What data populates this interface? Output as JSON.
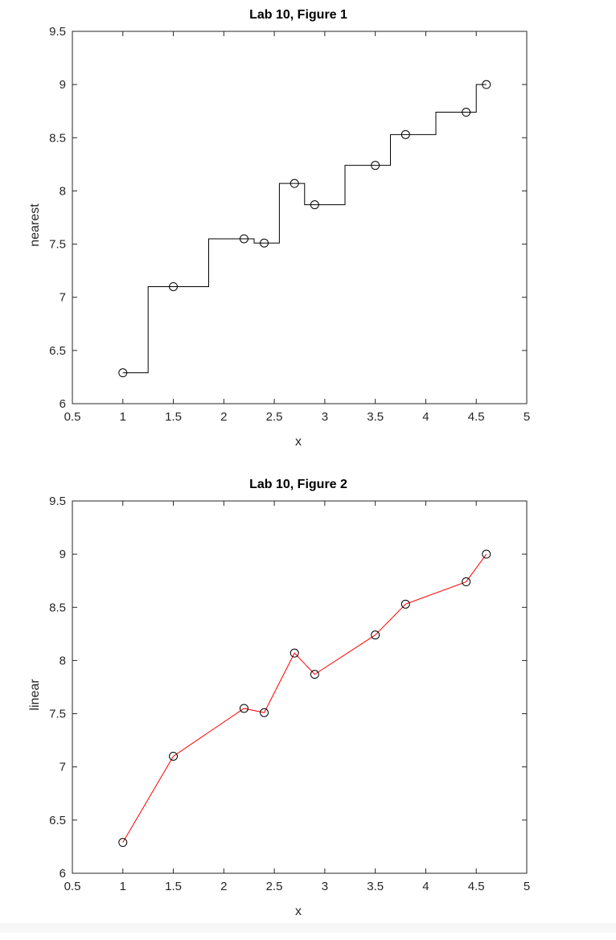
{
  "chart_data": [
    {
      "type": "line",
      "interpolation": "nearest",
      "title": "Lab 10, Figure 1",
      "xlabel": "x",
      "ylabel": "nearest",
      "xlim": [
        0.5,
        5
      ],
      "ylim": [
        6,
        9.5
      ],
      "xticks": [
        "0.5",
        "1",
        "1.5",
        "2",
        "2.5",
        "3",
        "3.5",
        "4",
        "4.5",
        "5"
      ],
      "yticks": [
        "6",
        "6.5",
        "7",
        "7.5",
        "8",
        "8.5",
        "9",
        "9.5"
      ],
      "line_color": "#000000",
      "marker": "circle",
      "x": [
        1,
        1.5,
        2.2,
        2.4,
        2.7,
        2.9,
        3.5,
        3.8,
        4.4,
        4.6
      ],
      "y": [
        6.29,
        7.1,
        7.55,
        7.51,
        8.07,
        7.87,
        8.24,
        8.53,
        8.74,
        9.0
      ],
      "grid": false
    },
    {
      "type": "line",
      "interpolation": "linear",
      "title": "Lab 10, Figure 2",
      "xlabel": "x",
      "ylabel": "linear",
      "xlim": [
        0.5,
        5
      ],
      "ylim": [
        6,
        9.5
      ],
      "xticks": [
        "0.5",
        "1",
        "1.5",
        "2",
        "2.5",
        "3",
        "3.5",
        "4",
        "4.5",
        "5"
      ],
      "yticks": [
        "6",
        "6.5",
        "7",
        "7.5",
        "8",
        "8.5",
        "9",
        "9.5"
      ],
      "line_color": "#ff0000",
      "marker": "circle",
      "x": [
        1,
        1.5,
        2.2,
        2.4,
        2.7,
        2.9,
        3.5,
        3.8,
        4.4,
        4.6
      ],
      "y": [
        6.29,
        7.1,
        7.55,
        7.51,
        8.07,
        7.87,
        8.24,
        8.53,
        8.74,
        9.0
      ],
      "grid": false
    }
  ]
}
